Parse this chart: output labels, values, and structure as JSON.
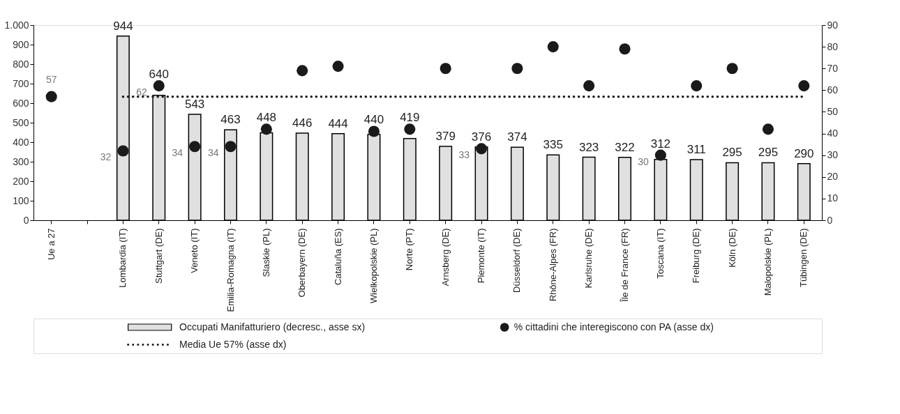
{
  "chart_data": {
    "type": "bar",
    "categories": [
      "Ue a 27",
      null,
      "Lombardia (IT)",
      "Stuttgart (DE)",
      "Veneto (IT)",
      "Emilia-Romagna (IT)",
      "Slaskie (PL)",
      "Oberbayern (DE)",
      "Cataluña (ES)",
      "Wielkopolskie (PL)",
      "Norte (PT)",
      "Arnsberg (DE)",
      "Piemonte (IT)",
      "Düsseldorf (DE)",
      "Rhône-Alpes (FR)",
      "Karlsruhe (DE)",
      "Île de France (FR)",
      "Toscana (IT)",
      "Freiburg (DE)",
      "Köln (DE)",
      "Malopolskie (PL)",
      "Tübingen (DE)"
    ],
    "series": [
      {
        "name": "Occupati Manifatturiero (decresc., asse sx)",
        "color": "#e0e0e0",
        "values": [
          null,
          null,
          944,
          640,
          543,
          463,
          448,
          446,
          444,
          440,
          419,
          379,
          376,
          374,
          335,
          323,
          322,
          312,
          311,
          295,
          295,
          290
        ],
        "value_labels": [
          null,
          null,
          "944",
          "640",
          "543",
          "463",
          "448",
          "446",
          "444",
          "440",
          "419",
          "379",
          "376",
          "374",
          "335",
          "323",
          "322",
          "312",
          "311",
          "295",
          "295",
          "290"
        ]
      },
      {
        "name": "% cittadini che interegiscono con PA (asse dx)",
        "type": "scatter",
        "axis": "y2",
        "marker": "circle",
        "color": "#1a1a1a",
        "values": [
          57,
          null,
          32,
          62,
          34,
          34,
          42,
          69,
          71,
          41,
          42,
          70,
          33,
          70,
          80,
          62,
          79,
          30,
          62,
          70,
          42,
          62
        ],
        "value_labels": [
          "57",
          null,
          "32",
          "62",
          "34",
          "34",
          null,
          null,
          null,
          null,
          null,
          null,
          "33",
          null,
          null,
          null,
          null,
          "30",
          null,
          null,
          null,
          null
        ]
      },
      {
        "name": "Media Ue 57% (asse dx)",
        "type": "line",
        "axis": "y2",
        "line_style": "dotted",
        "color": "#1a1a1a",
        "values": [
          null,
          null,
          57,
          57,
          57,
          57,
          57,
          57,
          57,
          57,
          57,
          57,
          57,
          57,
          57,
          57,
          57,
          57,
          57,
          57,
          57,
          57
        ]
      }
    ],
    "ylim": [
      0,
      1000
    ],
    "yticks": [
      0,
      100,
      200,
      300,
      400,
      500,
      600,
      700,
      800,
      900,
      {
        "value": 1000,
        "label": "1.000"
      }
    ],
    "y2lim": [
      0,
      90
    ],
    "y2ticks": [
      0,
      10,
      20,
      30,
      40,
      50,
      60,
      70,
      80,
      90
    ],
    "grid": false,
    "legend": "bottom"
  }
}
